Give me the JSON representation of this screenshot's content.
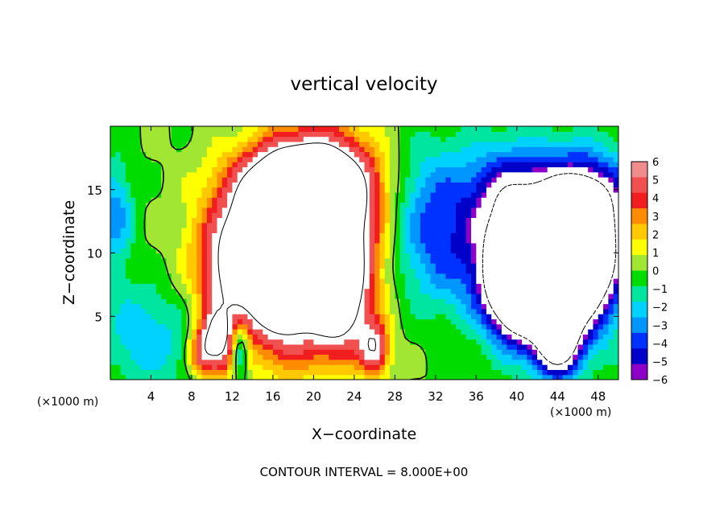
{
  "chart_data": {
    "type": "heatmap",
    "title": "vertical velocity",
    "xlabel": "X−coordinate",
    "ylabel": "Z−coordinate",
    "x_unit_left": "(×1000 m)",
    "x_unit_right": "(×1000 m)",
    "footer": "CONTOUR INTERVAL = 8.000E+00",
    "xlim": [
      0,
      50
    ],
    "ylim": [
      0,
      20
    ],
    "x_ticks": [
      4,
      8,
      12,
      16,
      20,
      24,
      28,
      32,
      36,
      40,
      44,
      48
    ],
    "x_tick_labels": [
      "4",
      "8",
      "12",
      "16",
      "20",
      "24",
      "28",
      "32",
      "36",
      "40",
      "44",
      "48"
    ],
    "y_ticks": [
      5,
      10,
      15
    ],
    "y_tick_labels": [
      "5",
      "10",
      "15"
    ],
    "clim": [
      -6,
      6
    ],
    "colorbar_labels": [
      "6",
      "5",
      "4",
      "3",
      "2",
      "1",
      "0",
      "−1",
      "−2",
      "−3",
      "−4",
      "−5",
      "−6"
    ],
    "colorbar_colors": [
      "#f08c8c",
      "#f05050",
      "#f01e1e",
      "#ff8c00",
      "#ffc800",
      "#ffff00",
      "#a0e632",
      "#00dc00",
      "#00e6a0",
      "#00d2ff",
      "#0096ff",
      "#0032ff",
      "#0000c8",
      "#8c00c8"
    ],
    "saturated_color": "#ffffff",
    "updraft_cells": [
      {
        "x": 21.0,
        "z": 12.0,
        "w": 14,
        "sx": 3.4,
        "sz": 4.5
      },
      {
        "x": 17.0,
        "z": 9.0,
        "w": 12,
        "sx": 2.4,
        "sz": 4.5
      },
      {
        "x": 19.0,
        "z": 15.5,
        "w": 8,
        "sx": 4.5,
        "sz": 2.2
      },
      {
        "x": 14.5,
        "z": 11.0,
        "w": 8,
        "sx": 3.5,
        "sz": 3.5
      },
      {
        "x": 22.5,
        "z": 6.0,
        "w": 8,
        "sx": 2.0,
        "sz": 3.0
      },
      {
        "x": 10.5,
        "z": 3.0,
        "w": 9,
        "sx": 1.2,
        "sz": 1.8
      },
      {
        "x": 26.0,
        "z": 2.5,
        "w": 7,
        "sx": 1.0,
        "sz": 1.5
      },
      {
        "x": 12.0,
        "z": 8.0,
        "w": 5,
        "sx": 2.5,
        "sz": 3.0
      },
      {
        "x": 8.8,
        "z": 2.0,
        "w": 4,
        "sx": 0.8,
        "sz": 1.2
      }
    ],
    "downdraft_cells": [
      {
        "x": 44.0,
        "z": 8.5,
        "w": -14,
        "sx": 3.6,
        "sz": 3.8
      },
      {
        "x": 40.0,
        "z": 7.0,
        "w": -10,
        "sx": 2.0,
        "sz": 2.5
      },
      {
        "x": 47.0,
        "z": 11.0,
        "w": -10,
        "sx": 2.0,
        "sz": 3.0
      },
      {
        "x": 44.0,
        "z": 3.0,
        "w": -9,
        "sx": 1.5,
        "sz": 1.8
      },
      {
        "x": 44.0,
        "z": 15.0,
        "w": -5.5,
        "sx": 6.0,
        "sz": 2.5
      },
      {
        "x": 38.5,
        "z": 12.0,
        "w": -3.5,
        "sx": 2.5,
        "sz": 4.0
      },
      {
        "x": 31.5,
        "z": 13.0,
        "w": -3.5,
        "sx": 3.0,
        "sz": 4.0
      },
      {
        "x": 35.0,
        "z": 9.0,
        "w": -2.2,
        "sx": 4.0,
        "sz": 3.0
      },
      {
        "x": 12.7,
        "z": 2.5,
        "w": -5,
        "sx": 0.6,
        "sz": 1.5
      },
      {
        "x": 5.0,
        "z": 3.0,
        "w": -2,
        "sx": 3.0,
        "sz": 3.0
      },
      {
        "x": 0.5,
        "z": 13.0,
        "w": -3.5,
        "sx": 1.2,
        "sz": 3.0
      },
      {
        "x": 2.0,
        "z": 4.0,
        "w": -1.5,
        "sx": 2.0,
        "sz": 2.5
      }
    ]
  }
}
